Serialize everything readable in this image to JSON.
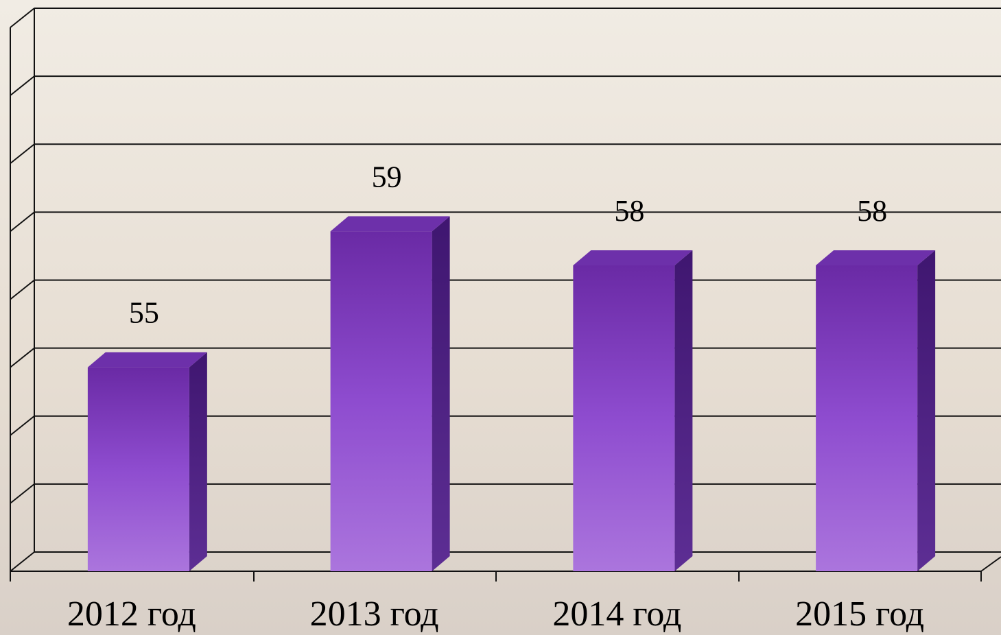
{
  "chart_data": {
    "type": "bar",
    "categories": [
      "2012 год",
      "2013 год",
      "2014 год",
      "2015 год"
    ],
    "values": [
      55,
      59,
      58,
      58
    ],
    "color": "#8a48c8",
    "ylim": [
      49,
      65
    ],
    "yticks": [
      49,
      51,
      53,
      55,
      57,
      59,
      61,
      63,
      65
    ],
    "grid": true
  }
}
